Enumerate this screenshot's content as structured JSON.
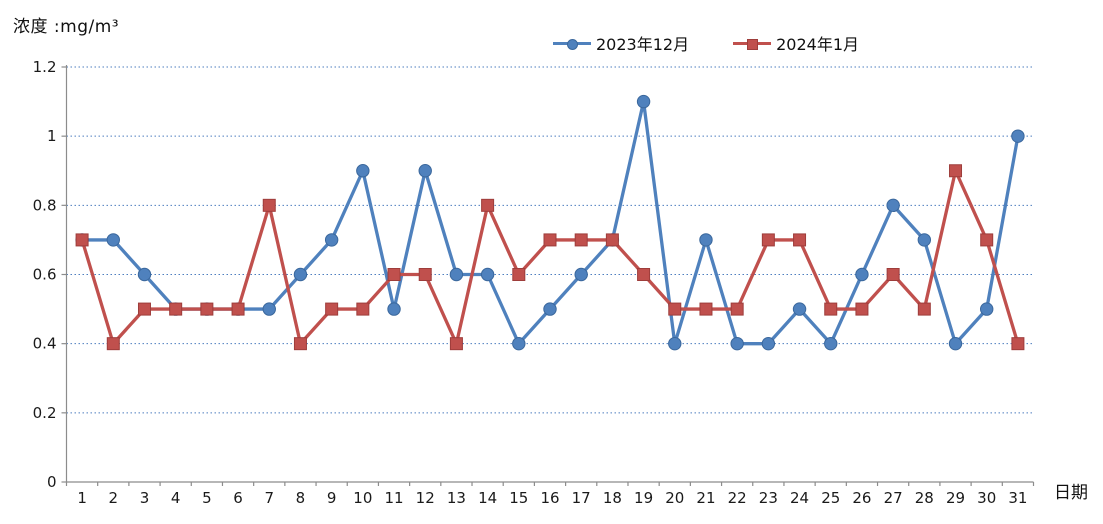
{
  "y_axis_title": "浓度 :mg/m³",
  "x_axis_title": "日期",
  "colors": {
    "series_blue": "#4F81BD",
    "series_red": "#C0504D",
    "gridline": "#4d7ebf",
    "axis": "#8c8c8c",
    "text": "#1a1a1a"
  },
  "chart_data": {
    "type": "line",
    "title": "",
    "xlabel": "日期",
    "ylabel": "浓度 :mg/m³",
    "x": [
      1,
      2,
      3,
      4,
      5,
      6,
      7,
      8,
      9,
      10,
      11,
      12,
      13,
      14,
      15,
      16,
      17,
      18,
      19,
      20,
      21,
      22,
      23,
      24,
      25,
      26,
      27,
      28,
      29,
      30,
      31
    ],
    "series": [
      {
        "name": "2023年12月",
        "color": "#4F81BD",
        "edge_color": "#3a679c",
        "marker": "circle",
        "values": [
          0.7,
          0.7,
          0.6,
          0.5,
          0.5,
          0.5,
          0.5,
          0.6,
          0.7,
          0.9,
          0.5,
          0.9,
          0.6,
          0.6,
          0.4,
          0.5,
          0.6,
          0.7,
          1.1,
          0.4,
          0.7,
          0.4,
          0.4,
          0.5,
          0.4,
          0.6,
          0.8,
          0.7,
          0.4,
          0.5,
          1.0
        ]
      },
      {
        "name": "2024年1月",
        "color": "#C0504D",
        "edge_color": "#9e3d3b",
        "marker": "square",
        "values": [
          0.7,
          0.4,
          0.5,
          0.5,
          0.5,
          0.5,
          0.8,
          0.4,
          0.5,
          0.5,
          0.6,
          0.6,
          0.4,
          0.8,
          0.6,
          0.7,
          0.7,
          0.7,
          0.6,
          0.5,
          0.5,
          0.5,
          0.7,
          0.7,
          0.5,
          0.5,
          0.6,
          0.5,
          0.9,
          0.7,
          0.4
        ]
      }
    ],
    "ylim": [
      0,
      1.2
    ],
    "yticks": [
      0,
      0.2,
      0.4,
      0.6,
      0.8,
      1,
      1.2
    ],
    "ytick_labels": [
      "0",
      "0.2",
      "0.4",
      "0.6",
      "0.8",
      "1",
      "1.2"
    ],
    "grid": "horizontal dotted",
    "legend_position": "top-center"
  }
}
